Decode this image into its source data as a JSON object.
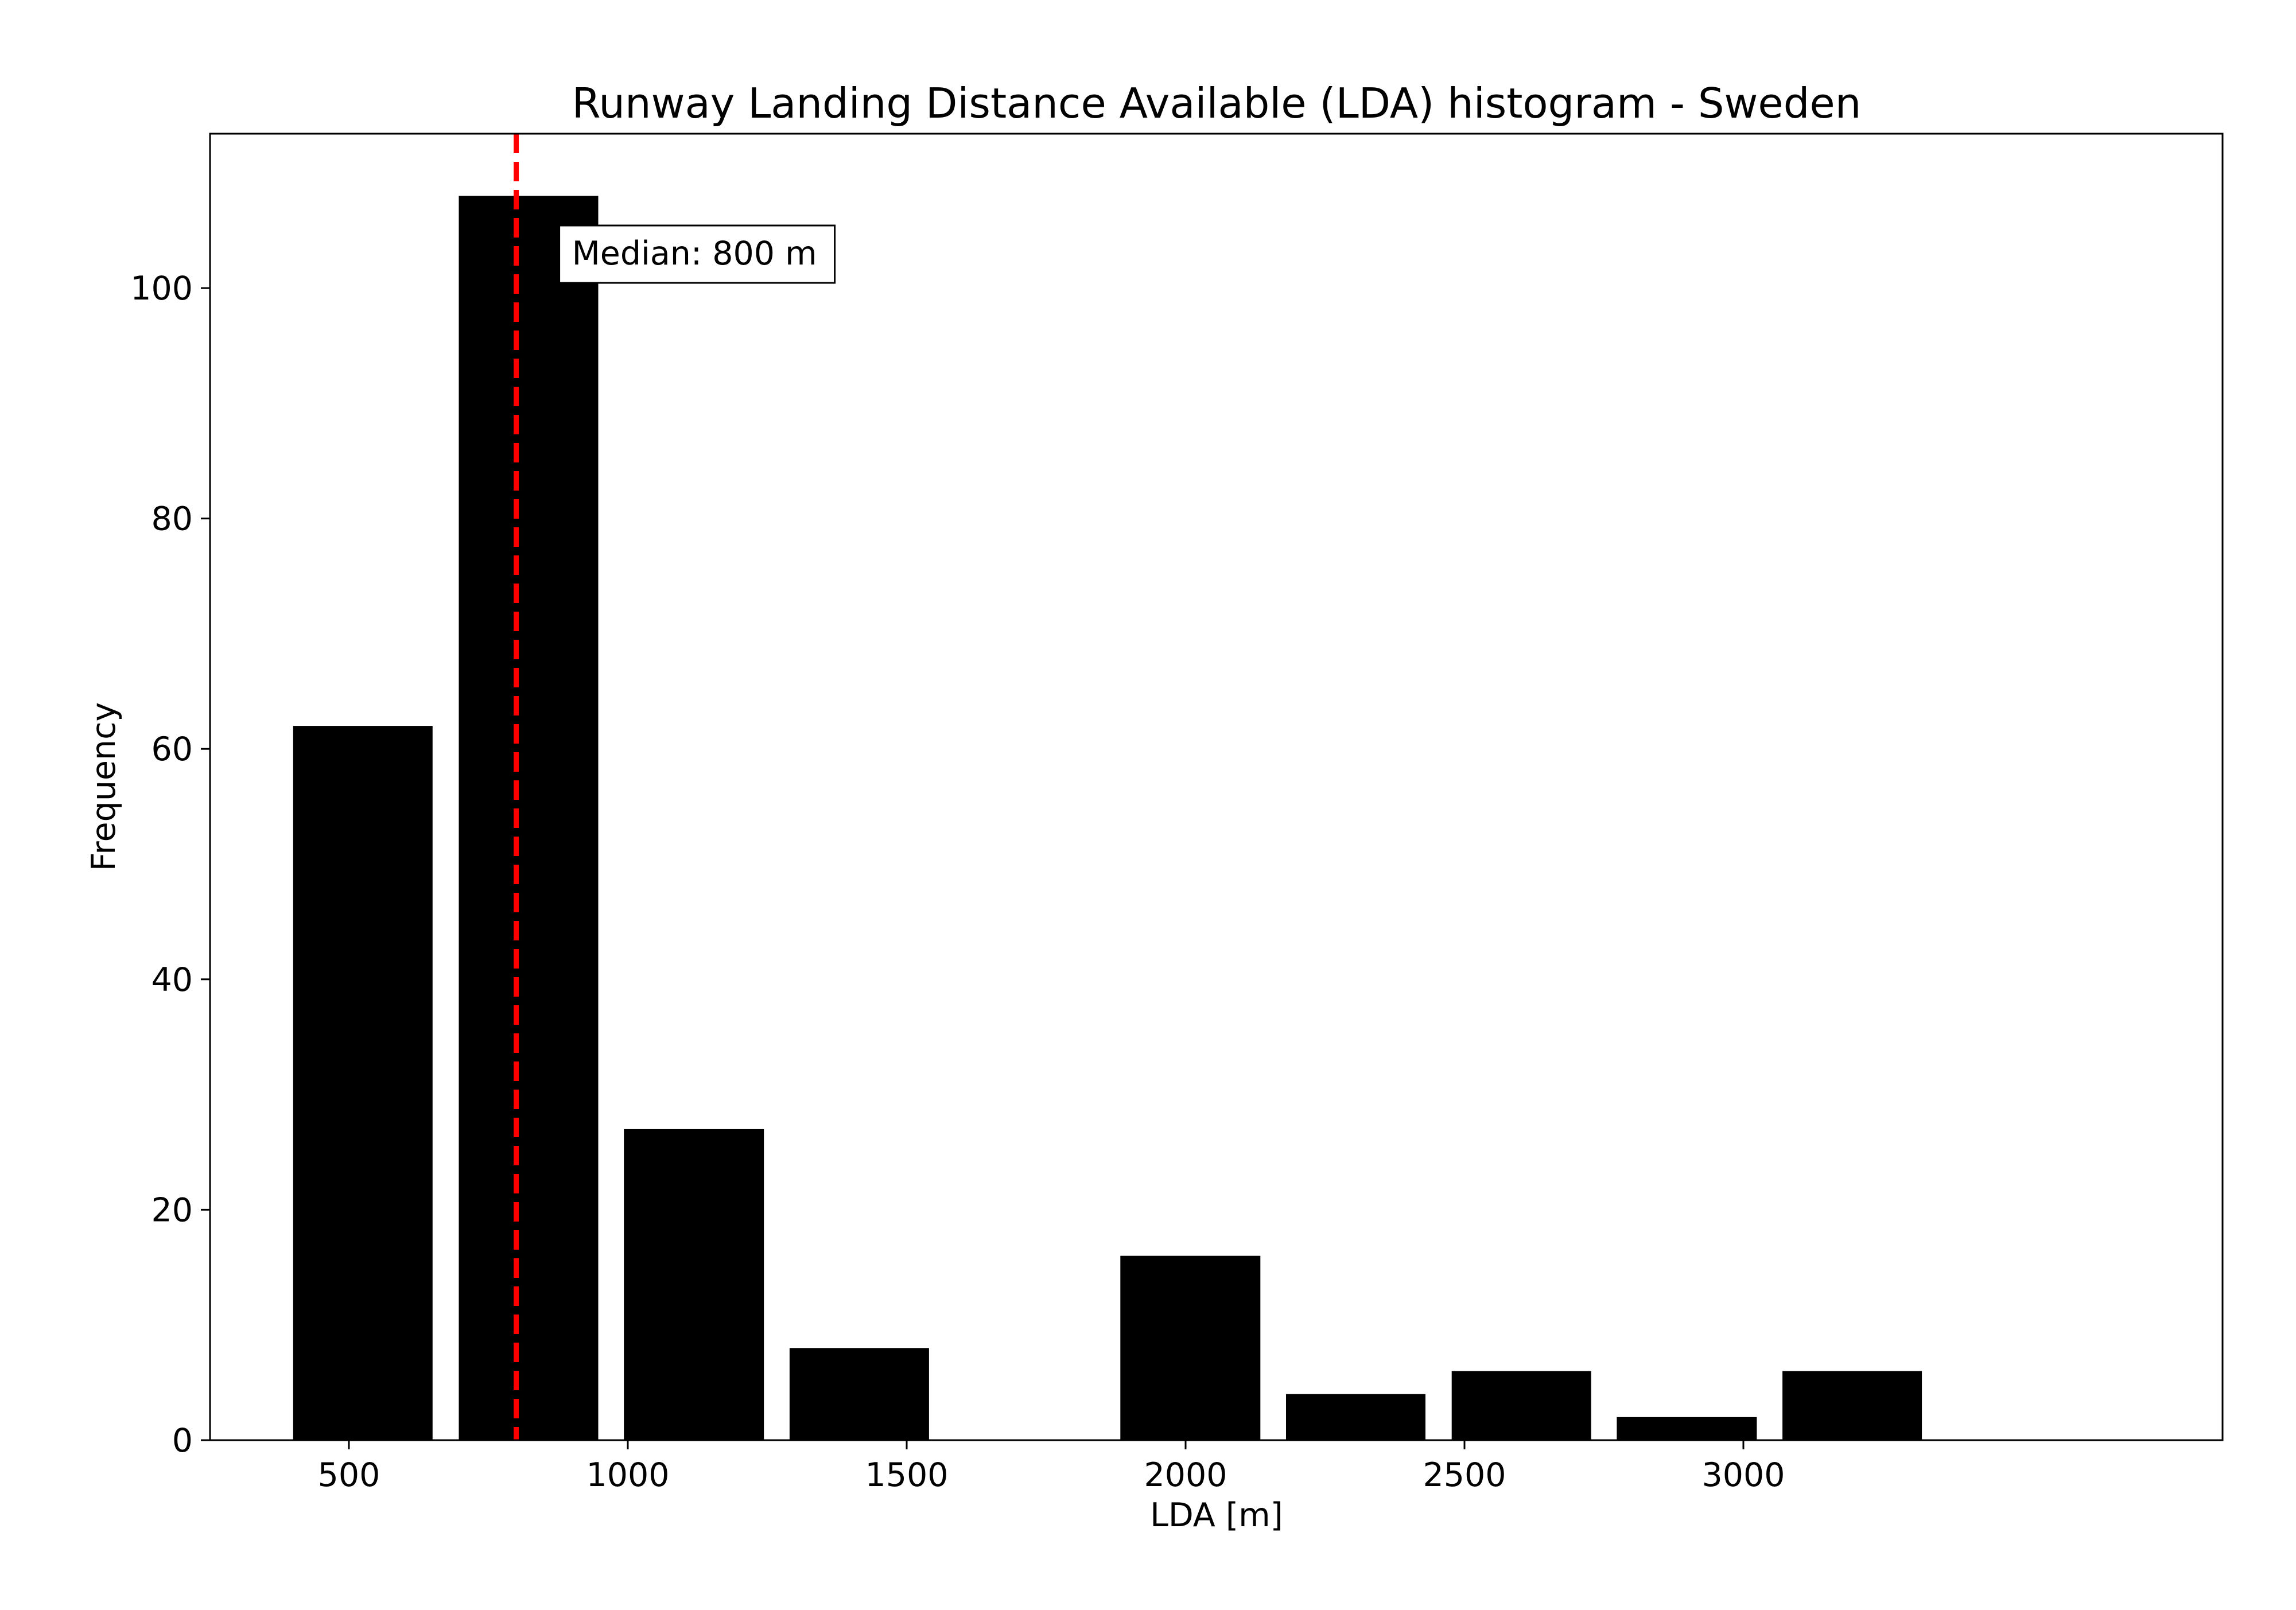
{
  "chart_data": {
    "type": "bar",
    "title": "Runway Landing Distance Available (LDA) histogram - Sweden",
    "xlabel": "LDA [m]",
    "ylabel": "Frequency",
    "xlim": [
      251,
      3859
    ],
    "ylim": [
      0,
      113.4
    ],
    "xticks": [
      500,
      1000,
      1500,
      2000,
      2500,
      3000
    ],
    "yticks": [
      0,
      20,
      40,
      60,
      80,
      100
    ],
    "grid": false,
    "bar_color": "#000000",
    "bins": [
      {
        "x0": 400,
        "x1": 650,
        "value": 62
      },
      {
        "x0": 697,
        "x1": 947,
        "value": 108
      },
      {
        "x0": 993,
        "x1": 1244,
        "value": 27
      },
      {
        "x0": 1290,
        "x1": 1540,
        "value": 8
      },
      {
        "x0": 1587,
        "x1": 1837,
        "value": 0
      },
      {
        "x0": 1883,
        "x1": 2134,
        "value": 16
      },
      {
        "x0": 2180,
        "x1": 2430,
        "value": 4
      },
      {
        "x0": 2477,
        "x1": 2727,
        "value": 6
      },
      {
        "x0": 2773,
        "x1": 3024,
        "value": 2
      },
      {
        "x0": 3070,
        "x1": 3320,
        "value": 6
      }
    ],
    "median": {
      "value": 800,
      "label": "Median: 800 m",
      "color": "#ff0000",
      "line_style": "dashed"
    }
  }
}
